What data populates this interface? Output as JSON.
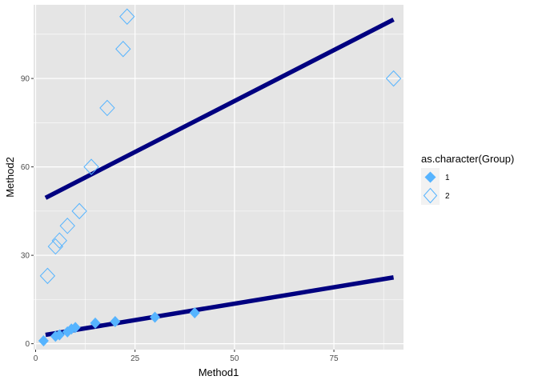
{
  "chart_data": {
    "type": "scatter",
    "xlabel": "Method1",
    "ylabel": "Method2",
    "xlim": [
      -0.5,
      92.5
    ],
    "ylim": [
      -2,
      115
    ],
    "x_ticks": [
      0,
      25,
      50,
      75
    ],
    "y_ticks": [
      0,
      30,
      60,
      90
    ],
    "grid": true,
    "legend": {
      "title": "as.character(Group)",
      "placement": "right",
      "entries": [
        "1",
        "2"
      ]
    },
    "colors": {
      "panel": "#e5e5e5",
      "grid": "#ffffff",
      "points": "#56b4ff",
      "fit_line": "#000080"
    },
    "series": [
      {
        "name": "1",
        "marker": "filled-diamond",
        "points": [
          {
            "x": 2,
            "y": 1
          },
          {
            "x": 5,
            "y": 2.5
          },
          {
            "x": 6,
            "y": 3
          },
          {
            "x": 8,
            "y": 4
          },
          {
            "x": 9,
            "y": 5
          },
          {
            "x": 10,
            "y": 5.5
          },
          {
            "x": 15,
            "y": 7
          },
          {
            "x": 20,
            "y": 7.5
          },
          {
            "x": 30,
            "y": 9
          },
          {
            "x": 40,
            "y": 10.5
          }
        ],
        "fit": {
          "x": [
            2.5,
            90
          ],
          "y": [
            3,
            22.5
          ]
        }
      },
      {
        "name": "2",
        "marker": "open-diamond",
        "points": [
          {
            "x": 3,
            "y": 23
          },
          {
            "x": 5,
            "y": 33
          },
          {
            "x": 6,
            "y": 35
          },
          {
            "x": 8,
            "y": 40
          },
          {
            "x": 11,
            "y": 45
          },
          {
            "x": 14,
            "y": 60
          },
          {
            "x": 18,
            "y": 80
          },
          {
            "x": 22,
            "y": 100
          },
          {
            "x": 23,
            "y": 111
          },
          {
            "x": 90,
            "y": 90
          }
        ],
        "fit": {
          "x": [
            2.5,
            90
          ],
          "y": [
            49.5,
            110
          ]
        }
      }
    ]
  }
}
